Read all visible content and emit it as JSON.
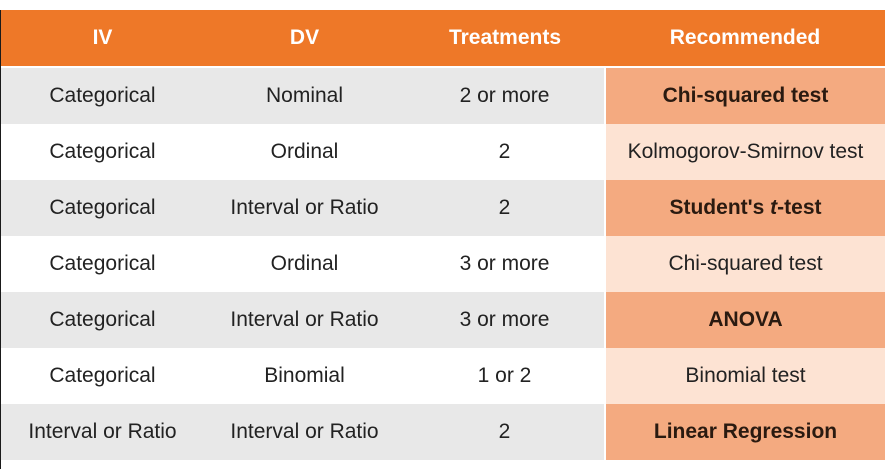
{
  "headers": [
    "IV",
    "DV",
    "Treatments",
    "Recommended"
  ],
  "rows": [
    {
      "iv": "Categorical",
      "dv": "Nominal",
      "treatments": "2 or more",
      "recommended": "Chi-squared test"
    },
    {
      "iv": "Categorical",
      "dv": "Ordinal",
      "treatments": "2",
      "recommended": "Kolmogorov-Smirnov test"
    },
    {
      "iv": "Categorical",
      "dv": "Interval or Ratio",
      "treatments": "2",
      "recommended_prefix": "Student's ",
      "recommended_var": "t",
      "recommended_suffix": "-test"
    },
    {
      "iv": "Categorical",
      "dv": "Ordinal",
      "treatments": "3 or more",
      "recommended": "Chi-squared test"
    },
    {
      "iv": "Categorical",
      "dv": "Interval or Ratio",
      "treatments": "3 or more",
      "recommended": "ANOVA"
    },
    {
      "iv": "Categorical",
      "dv": "Binomial",
      "treatments": "1 or 2",
      "recommended": "Binomial test"
    },
    {
      "iv": "Interval or Ratio",
      "dv": "Interval or Ratio",
      "treatments": "2",
      "recommended": "Linear Regression"
    }
  ],
  "colors": {
    "header": "#ee7828",
    "row_shaded": "#e8e8e8",
    "row_plain": "#ffffff",
    "rec_shaded": "#f4aa80",
    "rec_plain": "#fde3d3"
  }
}
